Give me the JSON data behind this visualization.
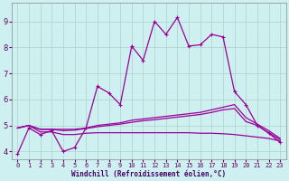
{
  "xlabel": "Windchill (Refroidissement éolien,°C)",
  "bg_color": "#cff0f0",
  "line_color": "#990099",
  "grid_color": "#b0d8d0",
  "xlim": [
    -0.5,
    23.5
  ],
  "ylim": [
    3.7,
    9.7
  ],
  "xticks": [
    0,
    1,
    2,
    3,
    4,
    5,
    6,
    7,
    8,
    9,
    10,
    11,
    12,
    13,
    14,
    15,
    16,
    17,
    18,
    19,
    20,
    21,
    22,
    23
  ],
  "yticks": [
    4,
    5,
    6,
    7,
    8,
    9
  ],
  "series1_x": [
    0,
    1,
    2,
    3,
    4,
    5,
    6,
    7,
    8,
    9,
    10,
    11,
    12,
    13,
    14,
    15,
    16,
    17,
    18,
    19,
    20,
    21,
    22,
    23
  ],
  "series1_y": [
    3.9,
    4.9,
    4.65,
    4.8,
    4.0,
    4.15,
    4.9,
    6.5,
    6.25,
    5.8,
    8.05,
    7.5,
    9.0,
    8.5,
    9.15,
    8.05,
    8.1,
    8.5,
    8.4,
    6.3,
    5.8,
    5.0,
    4.7,
    4.35
  ],
  "series2_x": [
    0,
    1,
    2,
    3,
    4,
    5,
    6,
    7,
    8,
    9,
    10,
    11,
    12,
    13,
    14,
    15,
    16,
    17,
    18,
    19,
    20,
    21,
    22,
    23
  ],
  "series2_y": [
    4.9,
    5.0,
    4.85,
    4.85,
    4.85,
    4.85,
    4.9,
    5.0,
    5.05,
    5.1,
    5.2,
    5.25,
    5.3,
    5.35,
    5.4,
    5.45,
    5.5,
    5.6,
    5.7,
    5.8,
    5.3,
    5.05,
    4.8,
    4.5
  ],
  "series3_x": [
    0,
    1,
    2,
    3,
    4,
    5,
    6,
    7,
    8,
    9,
    10,
    11,
    12,
    13,
    14,
    15,
    16,
    17,
    18,
    19,
    20,
    21,
    22,
    23
  ],
  "series3_y": [
    4.9,
    5.0,
    4.85,
    4.85,
    4.8,
    4.82,
    4.88,
    4.95,
    5.0,
    5.05,
    5.12,
    5.18,
    5.22,
    5.27,
    5.32,
    5.37,
    5.42,
    5.5,
    5.6,
    5.65,
    5.15,
    5.0,
    4.72,
    4.45
  ],
  "series4_x": [
    0,
    1,
    2,
    3,
    4,
    5,
    6,
    7,
    8,
    9,
    10,
    11,
    12,
    13,
    14,
    15,
    16,
    17,
    18,
    19,
    20,
    21,
    22,
    23
  ],
  "series4_y": [
    4.9,
    5.0,
    4.75,
    4.75,
    4.65,
    4.65,
    4.7,
    4.72,
    4.72,
    4.72,
    4.72,
    4.72,
    4.72,
    4.72,
    4.72,
    4.72,
    4.7,
    4.7,
    4.68,
    4.65,
    4.6,
    4.55,
    4.5,
    4.4
  ]
}
